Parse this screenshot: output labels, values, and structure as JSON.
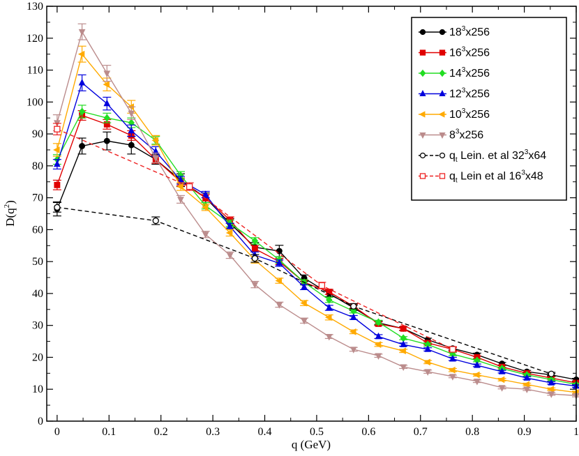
{
  "chart_data": {
    "type": "line",
    "title": "",
    "xlabel": "q (GeV)",
    "ylabel": "D(q²)",
    "xlim": [
      -0.02,
      1.0
    ],
    "ylim": [
      0,
      130
    ],
    "xticks": [
      0,
      0.1,
      0.2,
      0.3,
      0.4,
      0.5,
      0.6,
      0.7,
      0.8,
      0.9,
      1
    ],
    "xtick_labels": [
      "0",
      "0.1",
      "0.2",
      "0.3",
      "0.4",
      "0.5",
      "0.6",
      "0.7",
      "0.8",
      "0.9",
      "1"
    ],
    "yticks": [
      0,
      10,
      20,
      30,
      40,
      50,
      60,
      70,
      80,
      90,
      100,
      110,
      120,
      130
    ],
    "ytick_labels": [
      "0",
      "10",
      "20",
      "30",
      "40",
      "50",
      "60",
      "70",
      "80",
      "90",
      "100",
      "110",
      "120",
      "130"
    ],
    "legend_position": "top-right",
    "series": [
      {
        "name": "18³x256",
        "label_base": "18",
        "label_sup": "3",
        "label_tail": "x256",
        "color": "#000000",
        "marker": "circle",
        "dashed": false,
        "filled": true,
        "x": [
          0,
          0.048,
          0.096,
          0.143,
          0.19,
          0.238,
          0.286,
          0.333,
          0.381,
          0.428,
          0.476,
          0.524,
          0.571,
          0.619,
          0.667,
          0.714,
          0.762,
          0.809,
          0.857,
          0.905,
          0.952,
          1.0
        ],
        "y": [
          66.5,
          86.2,
          87.8,
          86.5,
          82.0,
          75.5,
          70.0,
          62.0,
          54.5,
          53.3,
          44.8,
          40.0,
          35.5,
          30.8,
          29.0,
          25.5,
          22.8,
          20.8,
          18.0,
          15.5,
          14.5,
          13.0
        ],
        "err": [
          2.2,
          2.5,
          2.8,
          2.8,
          1.5,
          2.0,
          1.5,
          1.5,
          1.5,
          1.8,
          1.0,
          1.0,
          0.8,
          0.6,
          0.6,
          0.5,
          0.5,
          0.5,
          0.4,
          0.4,
          0.4,
          0.4
        ]
      },
      {
        "name": "16³x256",
        "label_base": "16",
        "label_sup": "3",
        "label_tail": "x256",
        "color": "#e00000",
        "marker": "square",
        "dashed": false,
        "filled": true,
        "x": [
          0,
          0.048,
          0.096,
          0.143,
          0.19,
          0.238,
          0.286,
          0.333,
          0.381,
          0.428,
          0.476,
          0.524,
          0.571,
          0.619,
          0.667,
          0.714,
          0.762,
          0.809,
          0.857,
          0.905,
          0.952,
          1.0
        ],
        "y": [
          74.0,
          95.8,
          93.0,
          89.5,
          82.0,
          75.0,
          70.0,
          63.0,
          54.0,
          50.0,
          43.5,
          40.5,
          36.0,
          30.5,
          29.0,
          24.5,
          22.5,
          20.0,
          17.0,
          15.0,
          13.5,
          12.0
        ],
        "err": [
          1.5,
          1.5,
          1.5,
          1.5,
          1.2,
          1.2,
          1.0,
          1.0,
          1.0,
          1.0,
          0.8,
          0.8,
          0.6,
          0.6,
          0.5,
          0.5,
          0.5,
          0.4,
          0.4,
          0.4,
          0.4,
          0.4
        ]
      },
      {
        "name": "14³x256",
        "label_base": "14",
        "label_sup": "3",
        "label_tail": "x256",
        "color": "#22dd22",
        "marker": "diamond",
        "dashed": false,
        "filled": true,
        "x": [
          0,
          0.048,
          0.096,
          0.143,
          0.19,
          0.238,
          0.286,
          0.333,
          0.381,
          0.428,
          0.476,
          0.524,
          0.571,
          0.619,
          0.667,
          0.714,
          0.762,
          0.809,
          0.857,
          0.905,
          0.952,
          1.0
        ],
        "y": [
          82.0,
          97.0,
          95.0,
          93.5,
          88.0,
          77.0,
          67.5,
          62.0,
          56.5,
          50.5,
          43.5,
          38.0,
          34.5,
          31.0,
          26.0,
          24.0,
          21.0,
          19.0,
          16.5,
          14.5,
          13.0,
          11.5
        ],
        "err": [
          1.5,
          2.0,
          1.5,
          1.5,
          1.2,
          1.2,
          1.0,
          1.0,
          1.0,
          1.0,
          0.8,
          0.8,
          0.6,
          0.6,
          0.5,
          0.5,
          0.5,
          0.4,
          0.4,
          0.4,
          0.4,
          0.4
        ]
      },
      {
        "name": "12³x256",
        "label_base": "12",
        "label_sup": "3",
        "label_tail": "x256",
        "color": "#0000dd",
        "marker": "triangle-up",
        "dashed": false,
        "filled": true,
        "x": [
          0,
          0.048,
          0.096,
          0.143,
          0.19,
          0.238,
          0.286,
          0.333,
          0.381,
          0.428,
          0.476,
          0.524,
          0.571,
          0.619,
          0.667,
          0.714,
          0.762,
          0.809,
          0.857,
          0.905,
          0.952,
          1.0
        ],
        "y": [
          80.5,
          106.0,
          99.5,
          91.0,
          84.5,
          75.5,
          71.0,
          61.0,
          52.0,
          49.5,
          42.0,
          35.5,
          32.5,
          26.5,
          24.0,
          22.5,
          19.5,
          17.5,
          15.5,
          13.5,
          12.0,
          11.0
        ],
        "err": [
          1.5,
          2.5,
          2.0,
          1.8,
          1.5,
          1.2,
          1.0,
          1.0,
          1.0,
          1.0,
          0.8,
          0.8,
          0.6,
          0.6,
          0.5,
          0.5,
          0.5,
          0.4,
          0.4,
          0.4,
          0.4,
          0.4
        ]
      },
      {
        "name": "10³x256",
        "label_base": "10",
        "label_sup": "3",
        "label_tail": "x256",
        "color": "#ffaa00",
        "marker": "triangle-left",
        "dashed": false,
        "filled": true,
        "x": [
          0,
          0.048,
          0.096,
          0.143,
          0.19,
          0.238,
          0.286,
          0.333,
          0.381,
          0.428,
          0.476,
          0.524,
          0.571,
          0.619,
          0.667,
          0.714,
          0.762,
          0.809,
          0.857,
          0.905,
          0.952,
          1.0
        ],
        "y": [
          85.0,
          115.0,
          105.5,
          98.5,
          88.0,
          73.5,
          67.0,
          59.0,
          50.5,
          44.0,
          37.0,
          32.5,
          28.0,
          24.0,
          22.0,
          18.5,
          16.0,
          14.5,
          13.0,
          11.5,
          10.0,
          9.0
        ],
        "err": [
          2.0,
          2.5,
          2.0,
          2.0,
          1.5,
          1.2,
          1.0,
          1.0,
          1.0,
          0.8,
          0.8,
          0.8,
          0.6,
          0.6,
          0.5,
          0.5,
          0.5,
          0.4,
          0.4,
          0.4,
          0.4,
          0.4
        ]
      },
      {
        "name": "8³x256",
        "label_base": "8",
        "label_sup": "3",
        "label_tail": "x256",
        "color": "#bb8c8c",
        "marker": "triangle-down",
        "dashed": false,
        "filled": true,
        "x": [
          0,
          0.048,
          0.096,
          0.143,
          0.19,
          0.238,
          0.286,
          0.333,
          0.381,
          0.428,
          0.476,
          0.524,
          0.571,
          0.619,
          0.667,
          0.714,
          0.762,
          0.809,
          0.857,
          0.905,
          0.952,
          1.0
        ],
        "y": [
          93.5,
          122.0,
          109.0,
          96.5,
          82.5,
          69.5,
          58.5,
          52.0,
          42.8,
          36.5,
          31.5,
          26.5,
          22.5,
          20.5,
          17.0,
          15.5,
          14.0,
          12.5,
          10.5,
          10.0,
          8.5,
          8.0
        ],
        "err": [
          2.5,
          2.5,
          2.5,
          2.0,
          1.5,
          1.2,
          1.0,
          1.0,
          1.0,
          0.8,
          0.8,
          0.6,
          0.6,
          0.5,
          0.5,
          0.5,
          0.4,
          0.4,
          0.4,
          0.4,
          0.4,
          0.4
        ]
      },
      {
        "name": "q_t Lein. et al 32³x64",
        "label_base": "q",
        "label_sub": "t",
        "label_mid": " Lein. et al 32",
        "label_sup": "3",
        "label_tail": "x64",
        "color": "#000000",
        "marker": "circle",
        "dashed": true,
        "filled": false,
        "x": [
          0,
          0.19,
          0.381,
          0.571,
          0.952
        ],
        "y": [
          67.0,
          62.8,
          51.0,
          36.0,
          14.8
        ],
        "err": [
          1.5,
          1.2,
          1.2,
          0.8,
          0.5
        ]
      },
      {
        "name": "q_t Lein et al 16³x48",
        "label_base": "q",
        "label_sub": "t",
        "label_mid": " Lein et al 16",
        "label_sup": "3",
        "label_tail": "x48",
        "color": "#ee2222",
        "marker": "square",
        "dashed": true,
        "filled": false,
        "x": [
          0,
          0.255,
          0.51,
          0.762
        ],
        "y": [
          91.5,
          73.5,
          42.5,
          22.5
        ],
        "err": [
          1.8,
          1.2,
          1.0,
          0.8
        ]
      }
    ]
  }
}
